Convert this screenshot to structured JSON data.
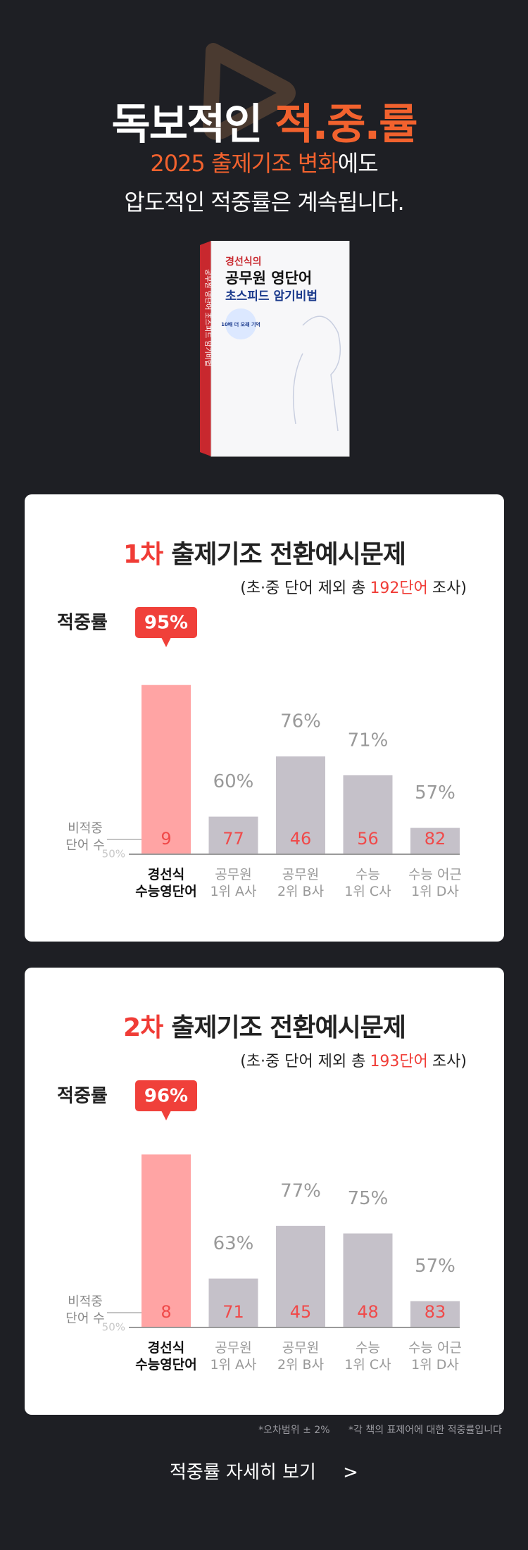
{
  "header": {
    "title_plain": "독보적인",
    "title_highlight": "적.중.률",
    "line2_highlight": "2025 출제기조 변화",
    "line2_plain": "에도",
    "line3": "압도적인 적중률은 계속됩니다."
  },
  "book": {
    "author": "경선식의",
    "title": "공무원 영단어",
    "subtitle": "초스피드 암기비법",
    "badge": "10배 더 오래 기억",
    "spine": "공무원 영단어 초스피드 암기비법"
  },
  "chart_data": [
    {
      "type": "bar",
      "title_highlight": "1차",
      "title": "출제기조 전환예시문제",
      "subtitle": [
        "(초·중 단어 제외 총",
        "192단어",
        "조사)"
      ],
      "y_label": "적중률",
      "categories": [
        "경선식\n수능영단어",
        "공무원\n1위 A사",
        "공무원\n2위 B사",
        "수능\n1위 C사",
        "수능 어근\n1위 D사"
      ],
      "values": [
        95,
        60,
        76,
        71,
        57
      ],
      "value_labels": [
        "95%",
        "60%",
        "76%",
        "71%",
        "57%"
      ],
      "colors": [
        "#ffa4a4",
        "#c5c1c9",
        "#c5c1c9",
        "#c5c1c9",
        "#c5c1c9"
      ],
      "miss_label": "비적중\n단어 수",
      "miss_counts": [
        9,
        77,
        46,
        56,
        82
      ],
      "ylim": [
        50,
        100
      ],
      "yticks": [
        {
          "value": 50,
          "label": "50%"
        }
      ]
    },
    {
      "type": "bar",
      "title_highlight": "2차",
      "title": "출제기조 전환예시문제",
      "subtitle": [
        "(초·중 단어 제외 총",
        "193단어",
        "조사)"
      ],
      "y_label": "적중률",
      "categories": [
        "경선식\n수능영단어",
        "공무원\n1위 A사",
        "공무원\n2위 B사",
        "수능\n1위 C사",
        "수능 어근\n1위 D사"
      ],
      "values": [
        96,
        63,
        77,
        75,
        57
      ],
      "value_labels": [
        "96%",
        "63%",
        "77%",
        "75%",
        "57%"
      ],
      "colors": [
        "#ffa4a4",
        "#c5c1c9",
        "#c5c1c9",
        "#c5c1c9",
        "#c5c1c9"
      ],
      "miss_label": "비적중\n단어 수",
      "miss_counts": [
        8,
        71,
        45,
        48,
        83
      ],
      "ylim": [
        50,
        100
      ],
      "yticks": [
        {
          "value": 50,
          "label": "50%"
        }
      ]
    }
  ],
  "footnotes": [
    "*오차범위 ± 2%",
    "*각 책의 표제어에 대한 적중률입니다"
  ],
  "cta": {
    "label": "적중률 자세히 보기",
    "arrow": ">"
  }
}
